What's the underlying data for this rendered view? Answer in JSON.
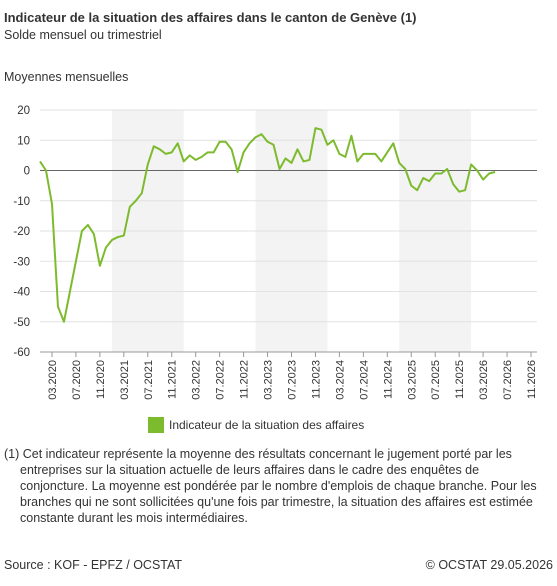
{
  "chart_data": {
    "type": "line",
    "title": "Indicateur de la situation des affaires dans le canton de Genève (1)",
    "subtitle": "Solde mensuel ou trimestriel",
    "panel_label": "Moyennes mensuelles",
    "x": [
      "01.2020",
      "02.2020",
      "03.2020",
      "04.2020",
      "05.2020",
      "06.2020",
      "07.2020",
      "08.2020",
      "09.2020",
      "10.2020",
      "11.2020",
      "12.2020",
      "01.2021",
      "02.2021",
      "03.2021",
      "04.2021",
      "05.2021",
      "06.2021",
      "07.2021",
      "08.2021",
      "09.2021",
      "10.2021",
      "11.2021",
      "12.2021",
      "01.2022",
      "02.2022",
      "03.2022",
      "04.2022",
      "05.2022",
      "06.2022",
      "07.2022",
      "08.2022",
      "09.2022",
      "10.2022",
      "11.2022",
      "12.2022",
      "01.2023",
      "02.2023",
      "03.2023",
      "04.2023",
      "05.2023",
      "06.2023",
      "07.2023",
      "08.2023",
      "09.2023",
      "10.2023",
      "11.2023",
      "12.2023",
      "01.2024",
      "02.2024",
      "03.2024",
      "04.2024",
      "05.2024",
      "06.2024",
      "07.2024",
      "08.2024",
      "09.2024",
      "10.2024",
      "11.2024",
      "12.2024",
      "01.2025",
      "02.2025",
      "03.2025",
      "04.2025",
      "05.2025",
      "06.2025",
      "07.2025",
      "08.2025",
      "09.2025",
      "10.2025",
      "11.2025",
      "12.2025",
      "01.2026",
      "02.2026",
      "03.2026",
      "04.2026",
      "05.2026"
    ],
    "series": [
      {
        "name": "Indicateur de la situation des affaires",
        "color": "#7dbb2e",
        "values": [
          3,
          0,
          -11,
          -45,
          -50,
          -40,
          -30,
          -20,
          -18,
          -21,
          -31.5,
          -25.5,
          -23,
          -22,
          -21.5,
          -12,
          -10,
          -7.5,
          2,
          8,
          7,
          5.5,
          6,
          9,
          3,
          5,
          3.5,
          4.5,
          6,
          6,
          9.5,
          9.5,
          7,
          -0.5,
          6,
          9,
          11,
          12,
          9.5,
          8.5,
          0.5,
          4,
          2.5,
          7,
          3,
          3.5,
          14,
          13.5,
          8.5,
          10,
          5.5,
          4.5,
          11.5,
          3,
          5.5,
          5.5,
          5.5,
          3,
          6,
          9,
          2.5,
          0.5,
          -5,
          -6.5,
          -2.5,
          -3.5,
          -1,
          -1,
          0.5,
          -4.5,
          -7,
          -6.5,
          2,
          0,
          -3,
          -1,
          -0.5
        ]
      }
    ],
    "xlim": [
      "01.2020",
      "12.2026"
    ],
    "xticks": [
      "03.2020",
      "07.2020",
      "11.2020",
      "03.2021",
      "07.2021",
      "11.2021",
      "03.2022",
      "07.2022",
      "11.2022",
      "03.2023",
      "07.2023",
      "11.2023",
      "03.2024",
      "07.2024",
      "11.2024",
      "03.2025",
      "07.2025",
      "11.2025",
      "03.2026",
      "07.2026",
      "11.2026"
    ],
    "ylim": [
      -60,
      20
    ],
    "yticks": [
      -60,
      -50,
      -40,
      -30,
      -20,
      -10,
      0,
      10,
      20
    ],
    "grid": true
  },
  "footnote": "(1) Cet indicateur représente la moyenne des résultats concernant le jugement porté par les entreprises sur la situation actuelle de leurs affaires dans le cadre des enquêtes de conjoncture. La moyenne est pondérée par le nombre d'emplois de chaque branche. Pour les branches qui ne sont sollicitées qu'une fois par trimestre, la situation des affaires est estimée constante durant les mois intermédiaires.",
  "source": "Source : KOF - EPFZ / OCSTAT",
  "copyright": "© OCSTAT 29.05.2026"
}
